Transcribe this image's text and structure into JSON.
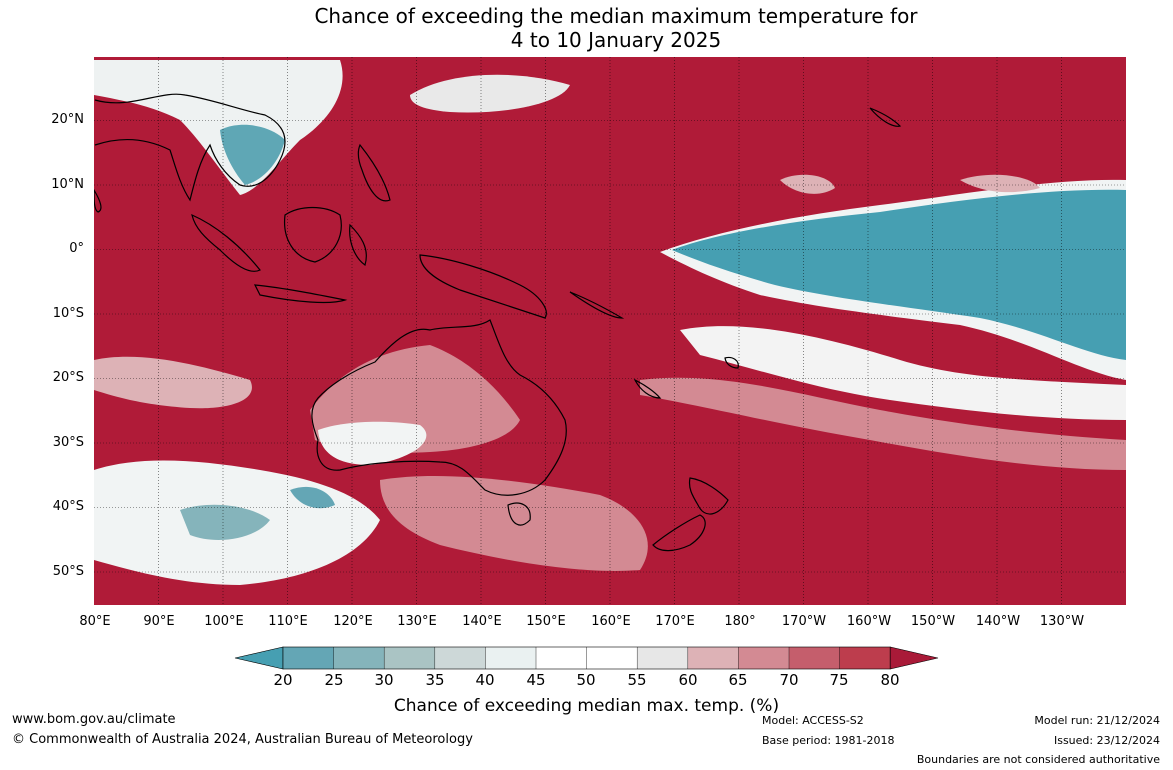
{
  "title": {
    "line1": "Chance of exceeding the median maximum temperature for",
    "line2": "4 to 10 January 2025"
  },
  "map": {
    "background_color": "#B01B38",
    "coastline_color": "#000000",
    "latitude_labels": [
      "20°N",
      "10°N",
      "0°",
      "10°S",
      "20°S",
      "30°S",
      "40°S",
      "50°S"
    ],
    "longitude_labels": [
      "80°E",
      "90°E",
      "100°E",
      "110°E",
      "120°E",
      "130°E",
      "140°E",
      "150°E",
      "160°E",
      "170°E",
      "180°",
      "170°W",
      "160°W",
      "150°W",
      "140°W",
      "130°W"
    ]
  },
  "colorbar": {
    "ticks": [
      "20",
      "25",
      "30",
      "35",
      "40",
      "45",
      "50",
      "55",
      "60",
      "65",
      "70",
      "75",
      "80"
    ],
    "colors": [
      "#469FB2",
      "#64A6B5",
      "#85B4BB",
      "#AAC4C4",
      "#CDD8D8",
      "#EAF1F1",
      "#FFFFFF",
      "#FFFFFF",
      "#E7E7E7",
      "#DDB2B6",
      "#D38A93",
      "#C55E6C",
      "#BD3D4D",
      "#A91A38"
    ],
    "label": "Chance of exceeding median max. temp. (%)"
  },
  "footer": {
    "website": "www.bom.gov.au/climate",
    "copyright": "© Commonwealth of Australia 2024, Australian Bureau of Meteorology",
    "model": "Model: ACCESS-S2",
    "base_period": "Base period: 1981-2018",
    "model_run": "Model run: 21/12/2024",
    "issued": "Issued: 23/12/2024",
    "disclaimer": "Boundaries are not considered authoritative"
  }
}
